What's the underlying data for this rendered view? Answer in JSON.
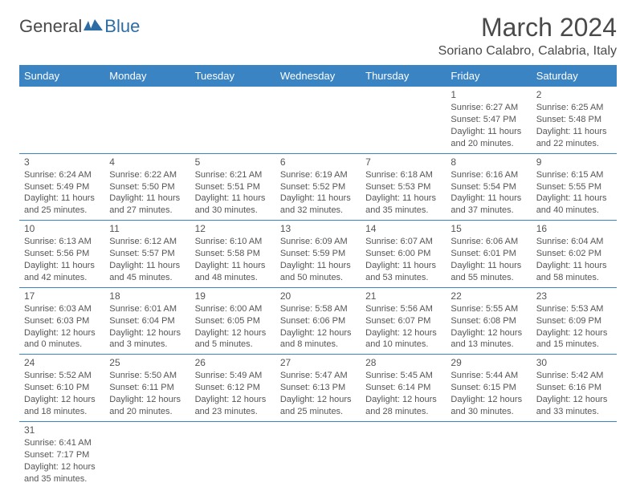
{
  "logo": {
    "general": "General",
    "blue": "Blue"
  },
  "title": "March 2024",
  "location": "Soriano Calabro, Calabria, Italy",
  "colors": {
    "header_bg": "#3b84c4",
    "header_text": "#ffffff",
    "border": "#3b84c4",
    "text": "#555555",
    "brand_blue": "#2e6ca4"
  },
  "weekdays": [
    "Sunday",
    "Monday",
    "Tuesday",
    "Wednesday",
    "Thursday",
    "Friday",
    "Saturday"
  ],
  "weeks": [
    [
      null,
      null,
      null,
      null,
      null,
      {
        "d": "1",
        "sr": "Sunrise: 6:27 AM",
        "ss": "Sunset: 5:47 PM",
        "dl1": "Daylight: 11 hours",
        "dl2": "and 20 minutes."
      },
      {
        "d": "2",
        "sr": "Sunrise: 6:25 AM",
        "ss": "Sunset: 5:48 PM",
        "dl1": "Daylight: 11 hours",
        "dl2": "and 22 minutes."
      }
    ],
    [
      {
        "d": "3",
        "sr": "Sunrise: 6:24 AM",
        "ss": "Sunset: 5:49 PM",
        "dl1": "Daylight: 11 hours",
        "dl2": "and 25 minutes."
      },
      {
        "d": "4",
        "sr": "Sunrise: 6:22 AM",
        "ss": "Sunset: 5:50 PM",
        "dl1": "Daylight: 11 hours",
        "dl2": "and 27 minutes."
      },
      {
        "d": "5",
        "sr": "Sunrise: 6:21 AM",
        "ss": "Sunset: 5:51 PM",
        "dl1": "Daylight: 11 hours",
        "dl2": "and 30 minutes."
      },
      {
        "d": "6",
        "sr": "Sunrise: 6:19 AM",
        "ss": "Sunset: 5:52 PM",
        "dl1": "Daylight: 11 hours",
        "dl2": "and 32 minutes."
      },
      {
        "d": "7",
        "sr": "Sunrise: 6:18 AM",
        "ss": "Sunset: 5:53 PM",
        "dl1": "Daylight: 11 hours",
        "dl2": "and 35 minutes."
      },
      {
        "d": "8",
        "sr": "Sunrise: 6:16 AM",
        "ss": "Sunset: 5:54 PM",
        "dl1": "Daylight: 11 hours",
        "dl2": "and 37 minutes."
      },
      {
        "d": "9",
        "sr": "Sunrise: 6:15 AM",
        "ss": "Sunset: 5:55 PM",
        "dl1": "Daylight: 11 hours",
        "dl2": "and 40 minutes."
      }
    ],
    [
      {
        "d": "10",
        "sr": "Sunrise: 6:13 AM",
        "ss": "Sunset: 5:56 PM",
        "dl1": "Daylight: 11 hours",
        "dl2": "and 42 minutes."
      },
      {
        "d": "11",
        "sr": "Sunrise: 6:12 AM",
        "ss": "Sunset: 5:57 PM",
        "dl1": "Daylight: 11 hours",
        "dl2": "and 45 minutes."
      },
      {
        "d": "12",
        "sr": "Sunrise: 6:10 AM",
        "ss": "Sunset: 5:58 PM",
        "dl1": "Daylight: 11 hours",
        "dl2": "and 48 minutes."
      },
      {
        "d": "13",
        "sr": "Sunrise: 6:09 AM",
        "ss": "Sunset: 5:59 PM",
        "dl1": "Daylight: 11 hours",
        "dl2": "and 50 minutes."
      },
      {
        "d": "14",
        "sr": "Sunrise: 6:07 AM",
        "ss": "Sunset: 6:00 PM",
        "dl1": "Daylight: 11 hours",
        "dl2": "and 53 minutes."
      },
      {
        "d": "15",
        "sr": "Sunrise: 6:06 AM",
        "ss": "Sunset: 6:01 PM",
        "dl1": "Daylight: 11 hours",
        "dl2": "and 55 minutes."
      },
      {
        "d": "16",
        "sr": "Sunrise: 6:04 AM",
        "ss": "Sunset: 6:02 PM",
        "dl1": "Daylight: 11 hours",
        "dl2": "and 58 minutes."
      }
    ],
    [
      {
        "d": "17",
        "sr": "Sunrise: 6:03 AM",
        "ss": "Sunset: 6:03 PM",
        "dl1": "Daylight: 12 hours",
        "dl2": "and 0 minutes."
      },
      {
        "d": "18",
        "sr": "Sunrise: 6:01 AM",
        "ss": "Sunset: 6:04 PM",
        "dl1": "Daylight: 12 hours",
        "dl2": "and 3 minutes."
      },
      {
        "d": "19",
        "sr": "Sunrise: 6:00 AM",
        "ss": "Sunset: 6:05 PM",
        "dl1": "Daylight: 12 hours",
        "dl2": "and 5 minutes."
      },
      {
        "d": "20",
        "sr": "Sunrise: 5:58 AM",
        "ss": "Sunset: 6:06 PM",
        "dl1": "Daylight: 12 hours",
        "dl2": "and 8 minutes."
      },
      {
        "d": "21",
        "sr": "Sunrise: 5:56 AM",
        "ss": "Sunset: 6:07 PM",
        "dl1": "Daylight: 12 hours",
        "dl2": "and 10 minutes."
      },
      {
        "d": "22",
        "sr": "Sunrise: 5:55 AM",
        "ss": "Sunset: 6:08 PM",
        "dl1": "Daylight: 12 hours",
        "dl2": "and 13 minutes."
      },
      {
        "d": "23",
        "sr": "Sunrise: 5:53 AM",
        "ss": "Sunset: 6:09 PM",
        "dl1": "Daylight: 12 hours",
        "dl2": "and 15 minutes."
      }
    ],
    [
      {
        "d": "24",
        "sr": "Sunrise: 5:52 AM",
        "ss": "Sunset: 6:10 PM",
        "dl1": "Daylight: 12 hours",
        "dl2": "and 18 minutes."
      },
      {
        "d": "25",
        "sr": "Sunrise: 5:50 AM",
        "ss": "Sunset: 6:11 PM",
        "dl1": "Daylight: 12 hours",
        "dl2": "and 20 minutes."
      },
      {
        "d": "26",
        "sr": "Sunrise: 5:49 AM",
        "ss": "Sunset: 6:12 PM",
        "dl1": "Daylight: 12 hours",
        "dl2": "and 23 minutes."
      },
      {
        "d": "27",
        "sr": "Sunrise: 5:47 AM",
        "ss": "Sunset: 6:13 PM",
        "dl1": "Daylight: 12 hours",
        "dl2": "and 25 minutes."
      },
      {
        "d": "28",
        "sr": "Sunrise: 5:45 AM",
        "ss": "Sunset: 6:14 PM",
        "dl1": "Daylight: 12 hours",
        "dl2": "and 28 minutes."
      },
      {
        "d": "29",
        "sr": "Sunrise: 5:44 AM",
        "ss": "Sunset: 6:15 PM",
        "dl1": "Daylight: 12 hours",
        "dl2": "and 30 minutes."
      },
      {
        "d": "30",
        "sr": "Sunrise: 5:42 AM",
        "ss": "Sunset: 6:16 PM",
        "dl1": "Daylight: 12 hours",
        "dl2": "and 33 minutes."
      }
    ],
    [
      {
        "d": "31",
        "sr": "Sunrise: 6:41 AM",
        "ss": "Sunset: 7:17 PM",
        "dl1": "Daylight: 12 hours",
        "dl2": "and 35 minutes."
      },
      null,
      null,
      null,
      null,
      null,
      null
    ]
  ]
}
